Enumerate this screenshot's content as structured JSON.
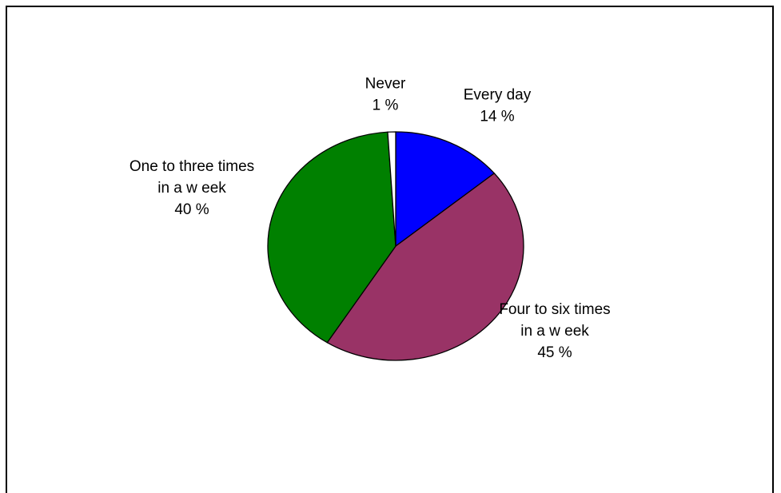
{
  "chart_data": {
    "type": "pie",
    "slices": [
      {
        "label_lines": [
          "Every day"
        ],
        "value": 14,
        "value_text": "14 %",
        "color": "#0000ff"
      },
      {
        "label_lines": [
          "Four to six times",
          "in a w eek"
        ],
        "value": 45,
        "value_text": "45 %",
        "color": "#993366"
      },
      {
        "label_lines": [
          "One to three times",
          "in a w eek"
        ],
        "value": 40,
        "value_text": "40 %",
        "color": "#008000"
      },
      {
        "label_lines": [
          "Never"
        ],
        "value": 1,
        "value_text": "1 %",
        "color": "#ffffff"
      }
    ],
    "start_angle_deg": 90,
    "direction": "clockwise",
    "legend": "none",
    "stroke_color": "#000000"
  }
}
